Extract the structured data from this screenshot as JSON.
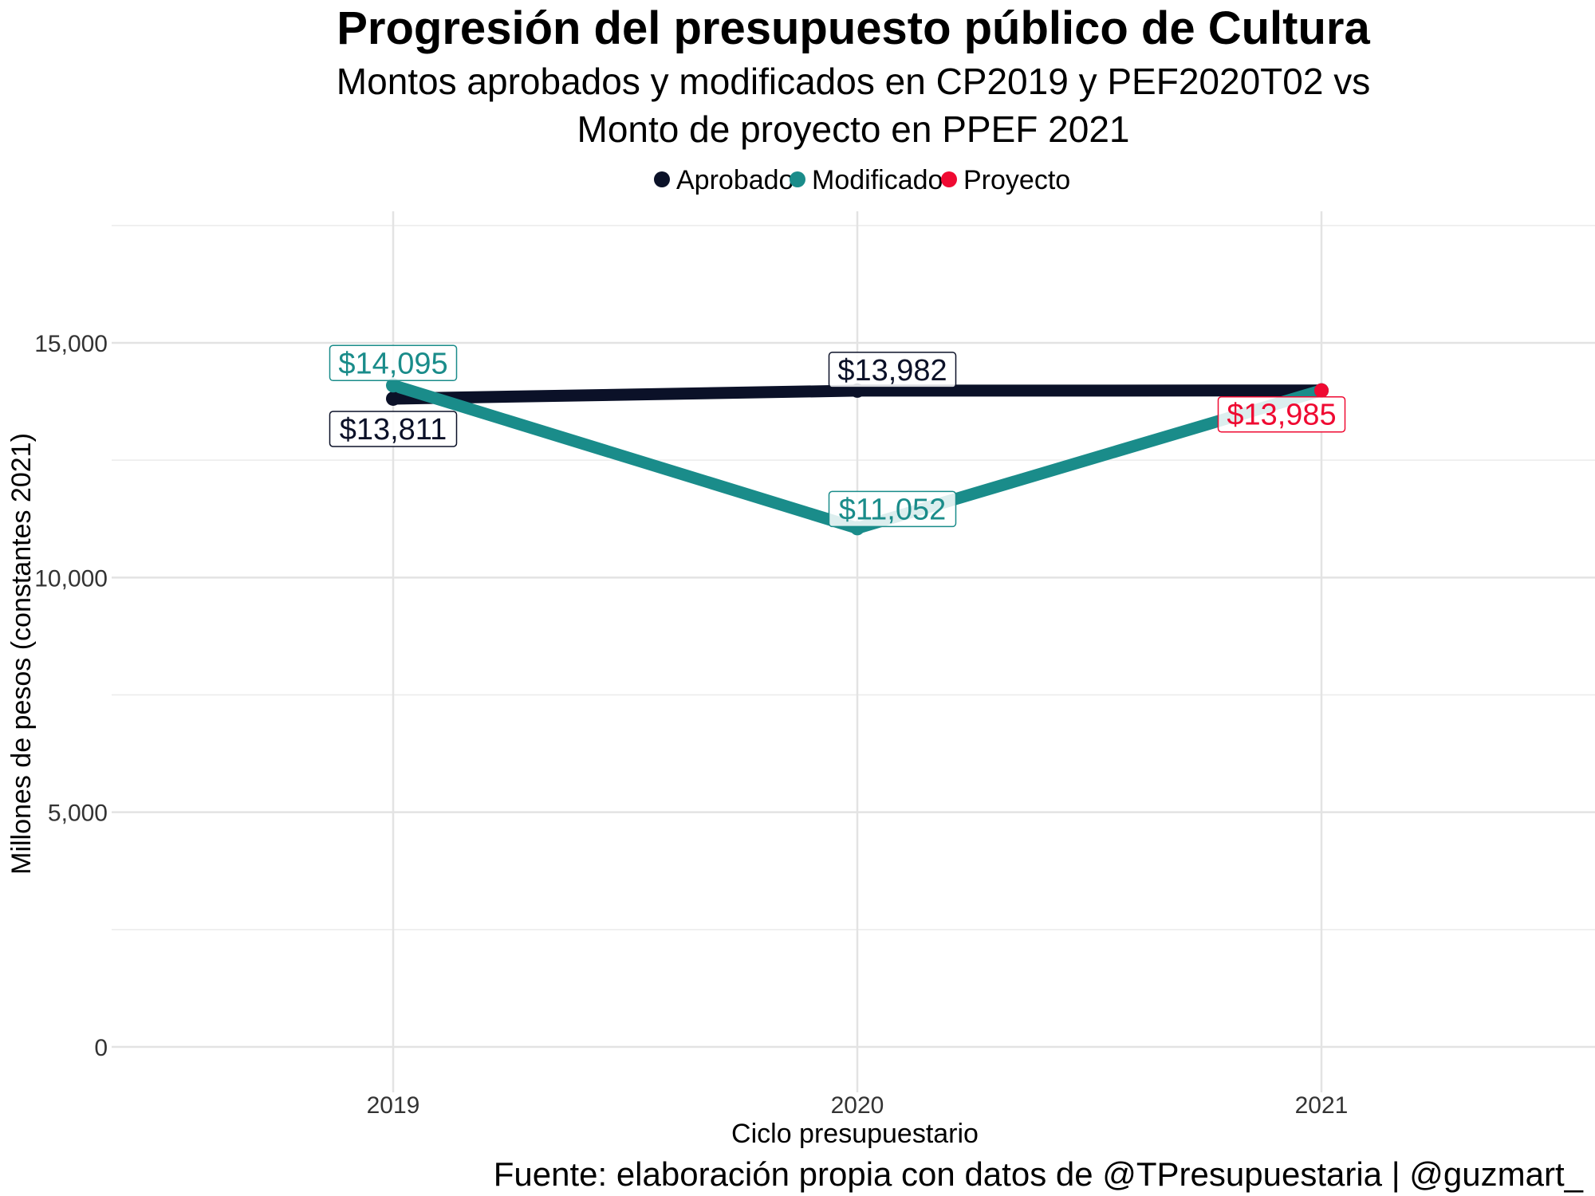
{
  "chart_data": {
    "type": "line",
    "title": "Progresión del presupuesto público de Cultura",
    "subtitle_lines": [
      "Montos aprobados y modificados en CP2019 y PEF2020T02 vs",
      "Monto de proyecto en PPEF 2021"
    ],
    "xlabel": "Ciclo presupuestario",
    "ylabel": "Millones de pesos (constantes 2021)",
    "caption": "Fuente: elaboración propia con datos de @TPresupuestaria | @guzmart_",
    "categories": [
      "2019",
      "2020",
      "2021"
    ],
    "ylim": [
      -1000,
      17500
    ],
    "yticks": [
      0,
      5000,
      10000,
      15000
    ],
    "ytick_labels": [
      "0",
      "5,000",
      "10,000",
      "15,000"
    ],
    "grid": true,
    "legend_position": "top",
    "series": [
      {
        "name": "Aprobado",
        "color": "#0b1128",
        "x": [
          "2019",
          "2020",
          "2021"
        ],
        "values": [
          13811,
          13982,
          13985
        ],
        "labels": [
          "$13,811",
          "$13,982",
          ""
        ]
      },
      {
        "name": "Modificado",
        "color": "#1a8c8a",
        "x": [
          "2019",
          "2020",
          "2021"
        ],
        "values": [
          14095,
          11052,
          13985
        ],
        "labels": [
          "$14,095",
          "$11,052",
          ""
        ]
      },
      {
        "name": "Proyecto",
        "color": "#ef0a32",
        "x": [
          "2021"
        ],
        "values": [
          13985
        ],
        "labels": [
          "$13,985"
        ]
      }
    ]
  }
}
